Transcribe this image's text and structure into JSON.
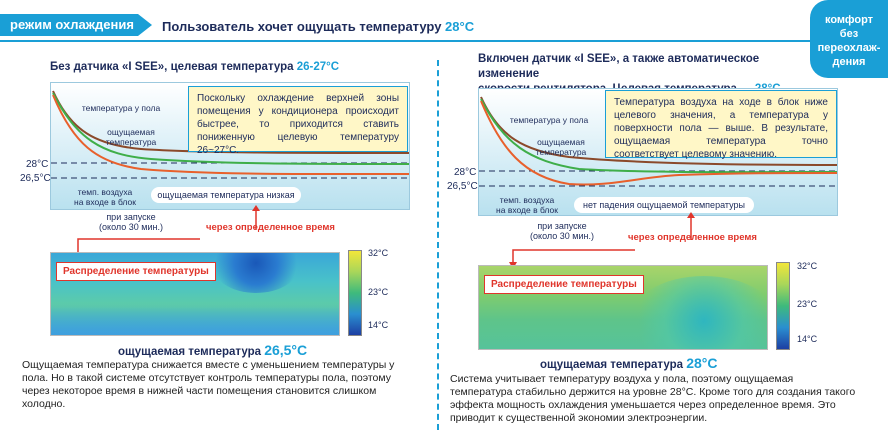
{
  "header": {
    "mode_label": "режим охлаждения",
    "title_text": "Пользователь хочет ощущать температуру ",
    "title_temp": "28°C",
    "badge_line1": "комфорт",
    "badge_line2": "без",
    "badge_line3": "переохлаж-",
    "badge_line4": "дения"
  },
  "left": {
    "title_text": "Без датчика «I SEE», целевая температура ",
    "title_temp": "26-27°C",
    "note": "Поскольку охлаждение верхней зоны помещения у кондиционера происходит быстрее, то приходится ставить пониженную целевую температуру 26~27°C.",
    "label_floor": "температура у пола",
    "label_felt_1": "ощущаемая",
    "label_felt_2": "температура",
    "label_inlet_1": "темп. воздуха",
    "label_inlet_2": "на входе в блок",
    "pill": "ощущаемая температура низкая",
    "y28": "28°C",
    "y265": "26,5°C",
    "startup_1": "при запуске",
    "startup_2": "(около 30 мин.)",
    "after_time": "через определенное время",
    "distribution": "Распределение температуры",
    "scale_top": "32°C",
    "scale_mid": "23°C",
    "scale_bot": "14°C",
    "caption_text": "ощущаемая температура ",
    "caption_temp": "26,5°C",
    "body": "Ощущаемая температура снижается вместе с уменьшением температуры у пола. Но в такой системе отсутствует контроль температуры пола, поэтому через некоторое время в нижней части помещения становится слишком холодно."
  },
  "right": {
    "title_line1": "Включен датчик «I SEE», а также автоматическое изменение",
    "title_line2_text": "скорости вентилятора. Целевая температура — ",
    "title_temp": "28°C",
    "note": "Температура воздуха на ходе в блок ниже целевого значения, а температура у поверхности пола — выше. В результате, ощущаемая температура точно соответствует целевому значению.",
    "label_floor": "температура у пола",
    "label_felt_1": "ощущаемая",
    "label_felt_2": "температура",
    "label_inlet_1": "темп. воздуха",
    "label_inlet_2": "на входе в блок",
    "pill": "нет падения ощущаемой температуры",
    "y28": "28°C",
    "y265": "26,5°C",
    "startup_1": "при запуске",
    "startup_2": "(около 30 мин.)",
    "after_time": "через определенное время",
    "distribution": "Распределение температуры",
    "scale_top": "32°C",
    "scale_mid": "23°C",
    "scale_bot": "14°C",
    "caption_text": "ощущаемая температура ",
    "caption_temp": "28°C",
    "body": "Система учитывает температуру воздуха у пола, поэтому ощущаемая температура стабильно держится на уровне 28°C. Кроме того для создания такого эффекта мощность охлаждения уменьшается через определенное время. Это приводит к существенной экономии электроэнергии."
  },
  "colors": {
    "accent": "#1a9fd6",
    "navy": "#1d2b5a",
    "red": "#e0352b",
    "brown_line": "#8b4a2b",
    "green_line": "#3fae49",
    "orange_line": "#e8602c",
    "note_bg": "#fff7c7"
  }
}
